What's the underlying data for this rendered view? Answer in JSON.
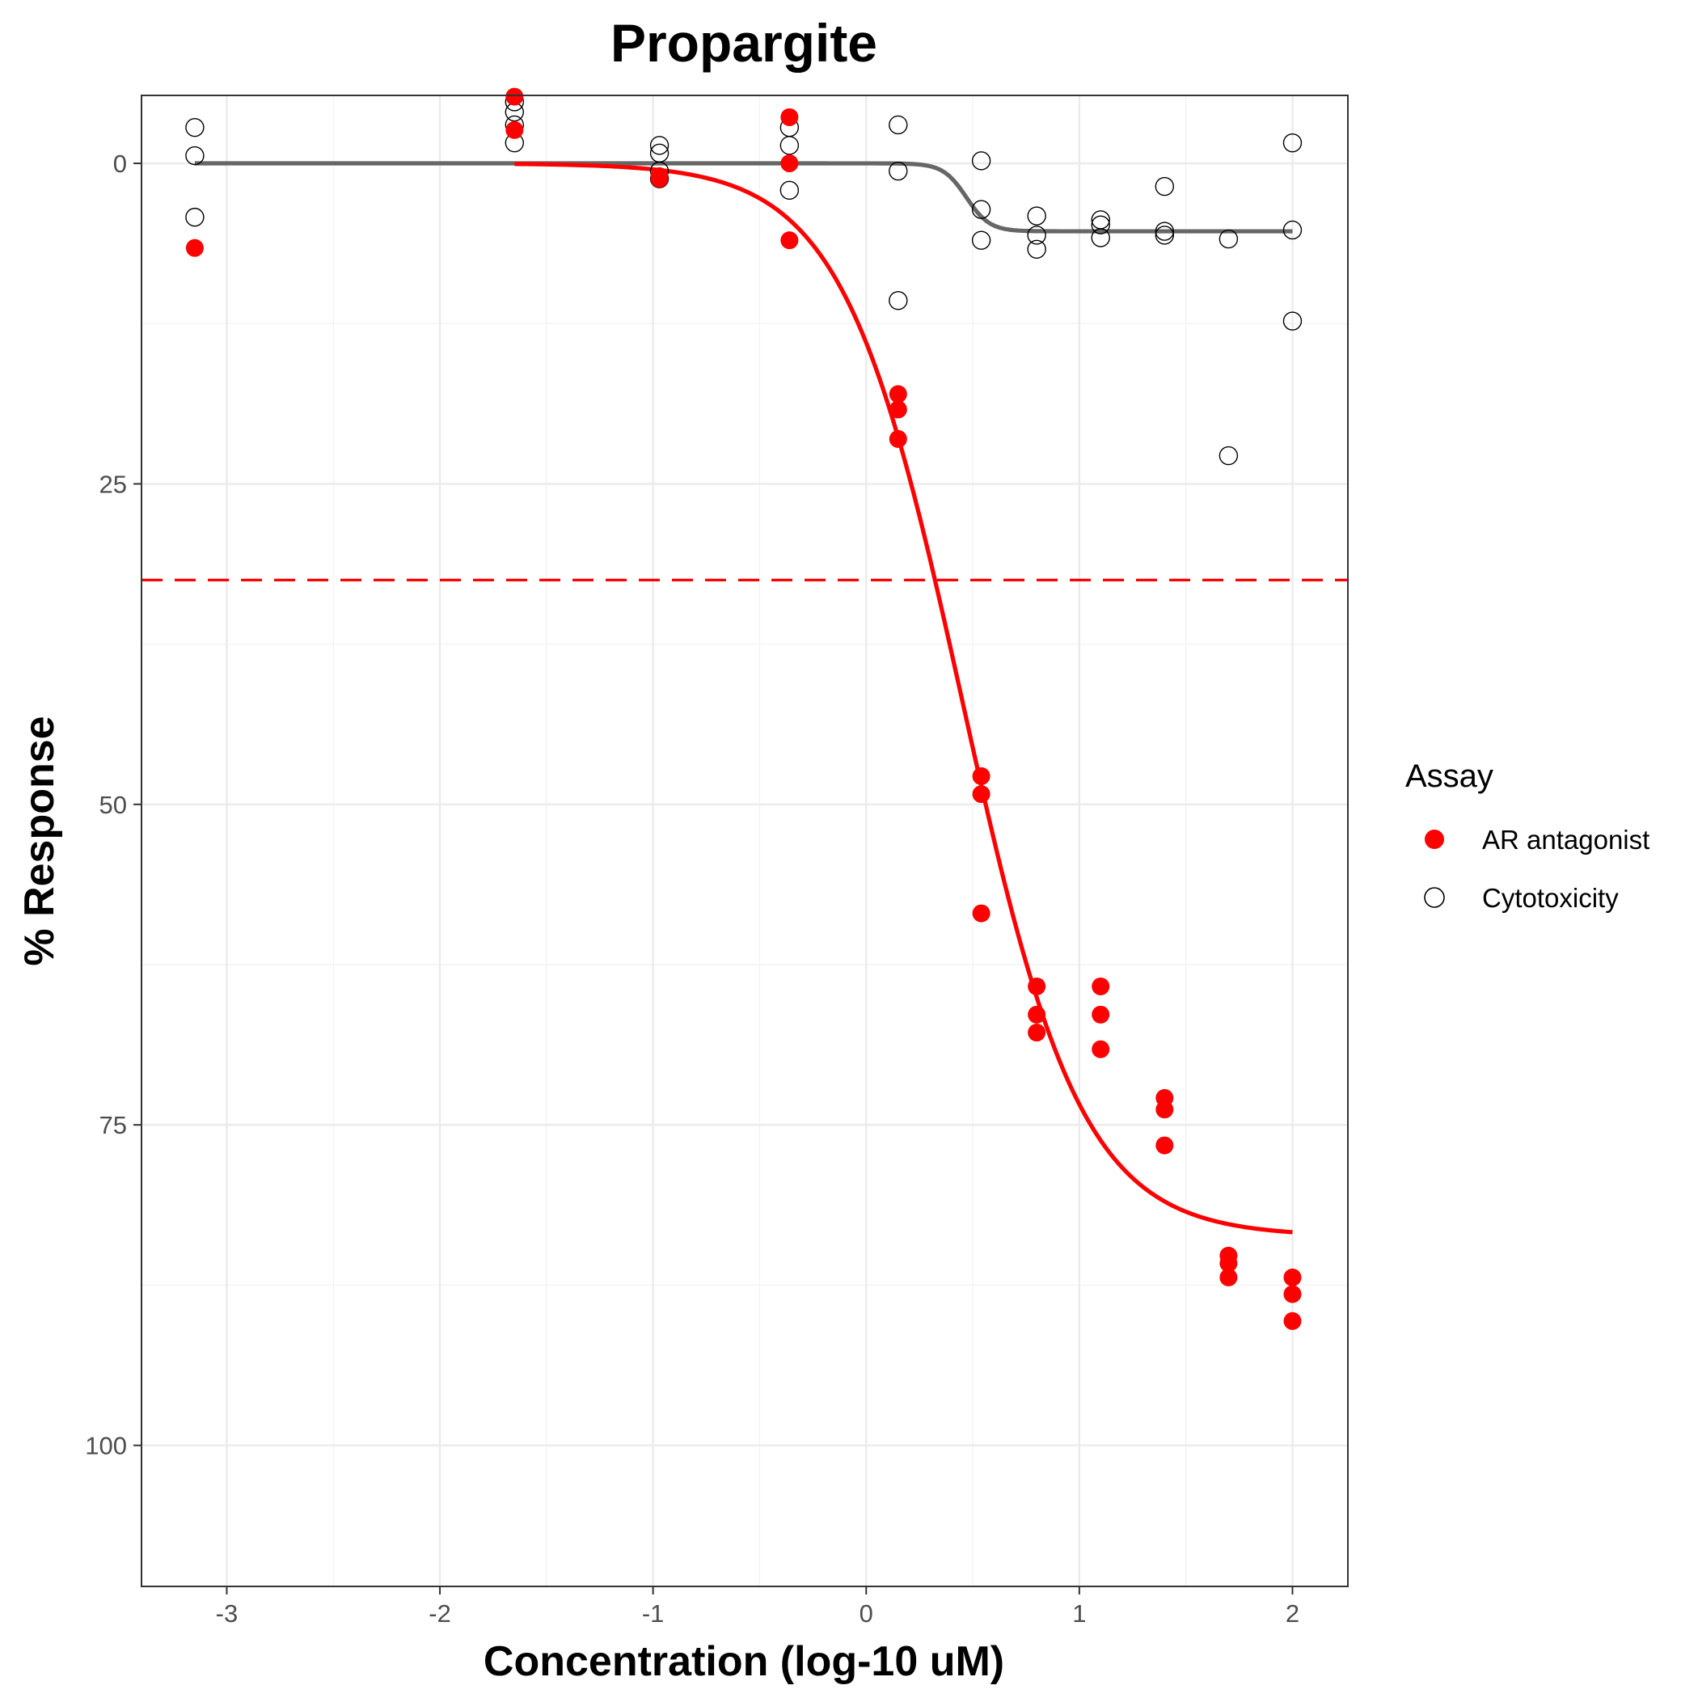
{
  "chart_data": {
    "type": "scatter",
    "title": "Propargite",
    "xlabel": "Concentration (log-10 uM)",
    "ylabel": "% Response",
    "xlim": [
      -3.4,
      2.26
    ],
    "ylim": [
      -5.3,
      111
    ],
    "y_reversed": true,
    "grid": true,
    "x_ticks": [
      -3,
      -2,
      -1,
      0,
      1,
      2
    ],
    "y_ticks": [
      0,
      25,
      50,
      75,
      100
    ],
    "x_tick_labels": [
      "-3",
      "-2",
      "-1",
      "0",
      "1",
      "2"
    ],
    "y_tick_labels": [
      "0",
      "25",
      "50",
      "75",
      "100"
    ],
    "legend": {
      "title": "Assay",
      "placement": "right",
      "entries": [
        "AR antagonist",
        "Cytotoxicity"
      ]
    },
    "reference_line": {
      "y": 32.5,
      "style": "dashed",
      "color": "#ff0000"
    },
    "series": [
      {
        "name": "AR antagonist",
        "marker": "filled-circle",
        "color": "#ff0000",
        "points": [
          [
            -3.15,
            6.6
          ],
          [
            -1.65,
            -5.2
          ],
          [
            -1.65,
            -2.6
          ],
          [
            -0.97,
            1.0
          ],
          [
            -0.97,
            1.2
          ],
          [
            -0.36,
            -3.6
          ],
          [
            -0.36,
            0.0
          ],
          [
            -0.36,
            6.0
          ],
          [
            0.15,
            18.0
          ],
          [
            0.15,
            19.2
          ],
          [
            0.15,
            21.5
          ],
          [
            0.54,
            47.8
          ],
          [
            0.54,
            49.2
          ],
          [
            0.54,
            58.5
          ],
          [
            0.8,
            64.2
          ],
          [
            0.8,
            66.4
          ],
          [
            0.8,
            67.8
          ],
          [
            1.1,
            64.2
          ],
          [
            1.1,
            66.4
          ],
          [
            1.1,
            69.1
          ],
          [
            1.4,
            72.9
          ],
          [
            1.4,
            73.8
          ],
          [
            1.4,
            76.6
          ],
          [
            1.7,
            85.2
          ],
          [
            1.7,
            85.8
          ],
          [
            1.7,
            86.9
          ],
          [
            2.0,
            86.9
          ],
          [
            2.0,
            88.2
          ],
          [
            2.0,
            90.3
          ]
        ],
        "fit": {
          "model": "hill",
          "top": 0,
          "bottom": 83.7,
          "ac50_log": 0.45,
          "hill_slope": 1.55,
          "x_range": [
            -1.65,
            2.0
          ]
        }
      },
      {
        "name": "Cytotoxicity",
        "marker": "open-circle",
        "color": "#000000",
        "points": [
          [
            -3.15,
            -2.8
          ],
          [
            -3.15,
            -0.6
          ],
          [
            -3.15,
            4.2
          ],
          [
            -1.65,
            -4.8
          ],
          [
            -1.65,
            -4.0
          ],
          [
            -1.65,
            -3.0
          ],
          [
            -1.65,
            -1.6
          ],
          [
            -0.97,
            -1.4
          ],
          [
            -0.97,
            -0.8
          ],
          [
            -0.97,
            0.6
          ],
          [
            -0.97,
            1.2
          ],
          [
            -0.36,
            -2.8
          ],
          [
            -0.36,
            -1.4
          ],
          [
            -0.36,
            2.1
          ],
          [
            0.15,
            -3.0
          ],
          [
            0.15,
            0.6
          ],
          [
            0.15,
            10.7
          ],
          [
            0.54,
            -0.2
          ],
          [
            0.54,
            3.6
          ],
          [
            0.54,
            6.0
          ],
          [
            0.8,
            4.1
          ],
          [
            0.8,
            5.6
          ],
          [
            0.8,
            6.7
          ],
          [
            1.1,
            4.4
          ],
          [
            1.1,
            4.8
          ],
          [
            1.1,
            5.8
          ],
          [
            1.4,
            1.8
          ],
          [
            1.4,
            5.3
          ],
          [
            1.4,
            5.6
          ],
          [
            1.7,
            5.9
          ],
          [
            1.7,
            22.8
          ],
          [
            2.0,
            -1.6
          ],
          [
            2.0,
            5.2
          ],
          [
            2.0,
            12.3
          ]
        ],
        "fit": {
          "model": "hill",
          "top": 0,
          "bottom": 5.3,
          "ac50_log": 0.47,
          "hill_slope": 8,
          "x_range": [
            -3.15,
            2.0
          ]
        }
      }
    ]
  }
}
